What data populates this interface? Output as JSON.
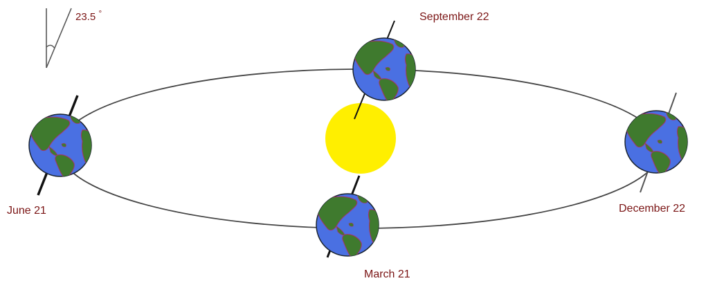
{
  "tilt_indicator": {
    "angle_text": "23.5",
    "degree_symbol": "°"
  },
  "labels": {
    "june": "June 21",
    "september": "September 22",
    "december": "December 22",
    "march": "March 21"
  },
  "colors": {
    "sun": "#ffef00",
    "ocean": "#4a70e2",
    "land": "#3f7a2e",
    "coast": "#a8326b",
    "orbit": "#444444",
    "axis": "#111111",
    "label_text": "#7a1414"
  },
  "icons": {
    "sun": "sun-icon",
    "earth": "earth-icon"
  }
}
